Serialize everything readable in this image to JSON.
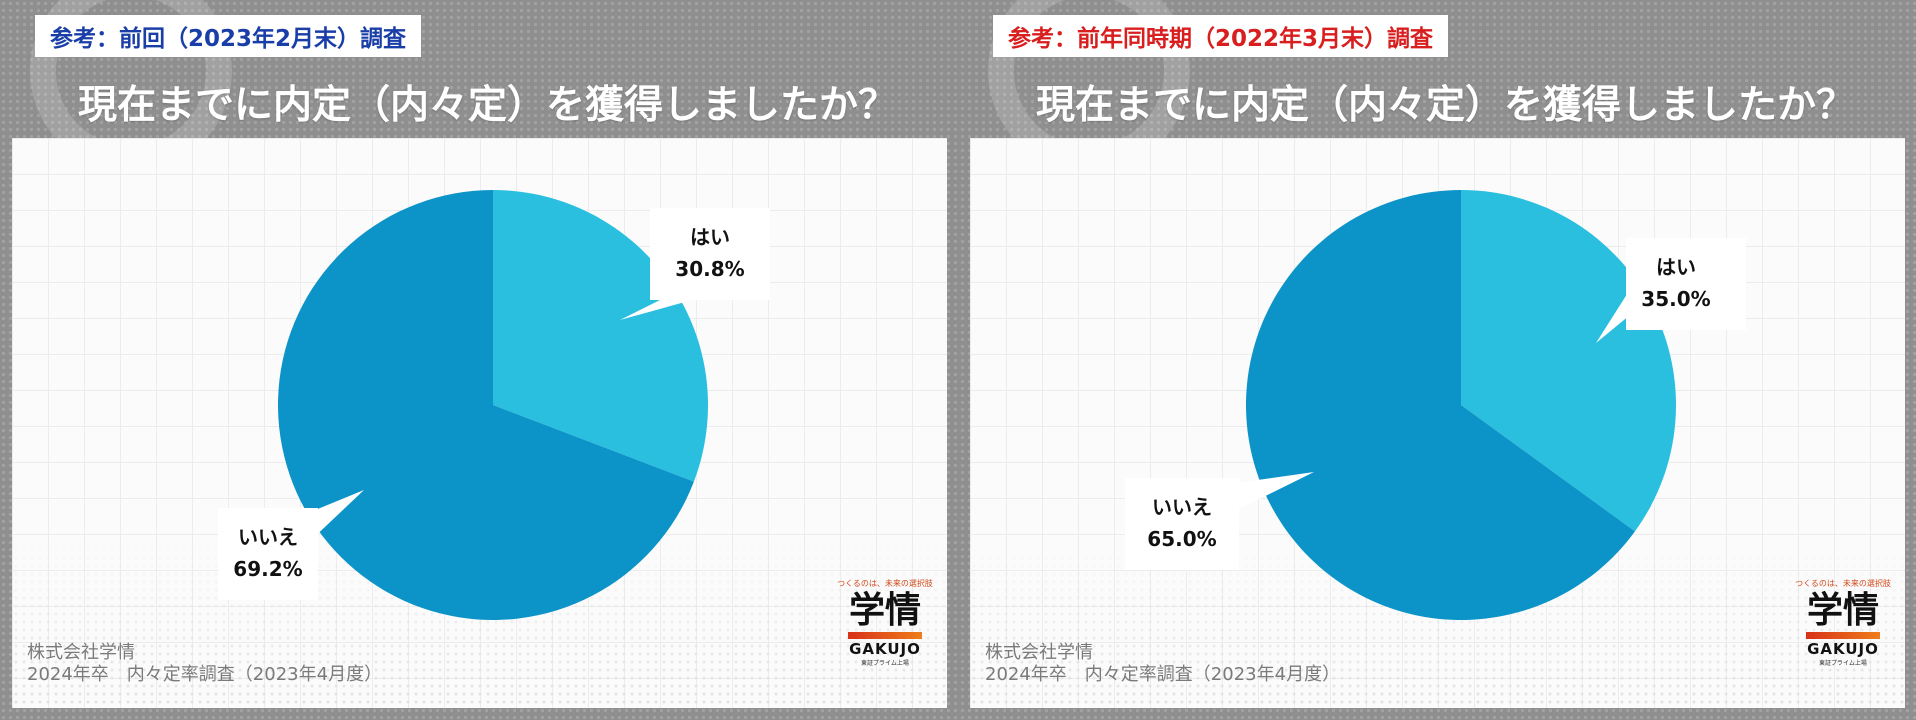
{
  "panels": [
    {
      "tag": "参考：前回（2023年2月末）調査",
      "tag_color": "#1a3ea8",
      "question": "現在までに内定（内々定）を獲得しましたか？",
      "footer_line1": "株式会社学情",
      "footer_line2": "2024年卒　内々定率調査（2023年4月度）"
    },
    {
      "tag": "参考：前年同時期（2022年3月末）調査",
      "tag_color": "#d81e1e",
      "question": "現在までに内定（内々定）を獲得しましたか？",
      "footer_line1": "株式会社学情",
      "footer_line2": "2024年卒　内々定率調査（2023年4月度）"
    }
  ],
  "logo": {
    "tagline": "つくるのは、未来の選択肢",
    "name": "学情",
    "roman": "GAKUJO",
    "listing": "東証プライム上場"
  },
  "chart_data": [
    {
      "type": "pie",
      "title": "現在までに内定（内々定）を獲得しましたか？",
      "categories": [
        "はい",
        "いいえ"
      ],
      "values": [
        30.8,
        69.2
      ],
      "value_labels": [
        "30.8%",
        "69.2%"
      ],
      "colors": [
        "#2bbfdf",
        "#0c93c8"
      ]
    },
    {
      "type": "pie",
      "title": "現在までに内定（内々定）を獲得しましたか？",
      "categories": [
        "はい",
        "いいえ"
      ],
      "values": [
        35.0,
        65.0
      ],
      "value_labels": [
        "35.0%",
        "65.0%"
      ],
      "colors": [
        "#2bbfdf",
        "#0c93c8"
      ]
    }
  ]
}
